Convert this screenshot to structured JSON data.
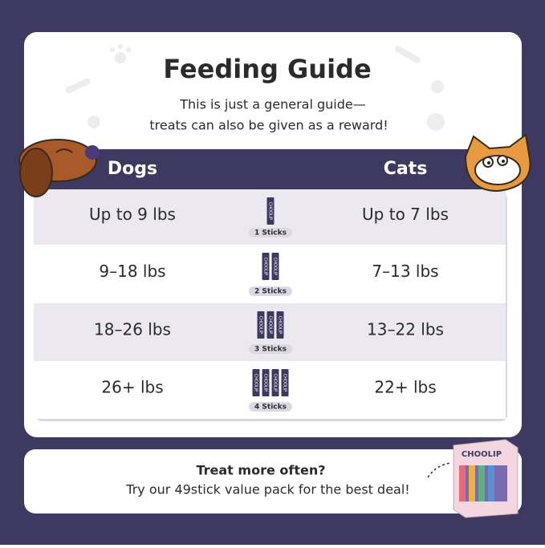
{
  "header": {
    "title": "Feeding Guide",
    "subtitle_lines": [
      "This is just a general guide—",
      "treats can also be given as a reward!"
    ]
  },
  "table": {
    "columns": [
      "Dogs",
      "Cats"
    ],
    "rows": [
      {
        "dogs": "Up to 9 lbs",
        "sticks_label": "1 Sticks",
        "stick_count": 1,
        "cats": "Up to 7 lbs"
      },
      {
        "dogs": "9–18 lbs",
        "sticks_label": "2 Sticks",
        "stick_count": 2,
        "cats": "7–13 lbs"
      },
      {
        "dogs": "18–26 lbs",
        "sticks_label": "3 Sticks",
        "stick_count": 3,
        "cats": "13–22 lbs"
      },
      {
        "dogs": "26+ lbs",
        "sticks_label": "4 Sticks",
        "stick_count": 4,
        "cats": "22+ lbs"
      }
    ],
    "stick_text": "CHOOLIP"
  },
  "footer": {
    "lines": [
      "Treat more often?",
      "Try our 49stick value pack for the best deal!"
    ],
    "box_brand": "CHOOLIP"
  }
}
